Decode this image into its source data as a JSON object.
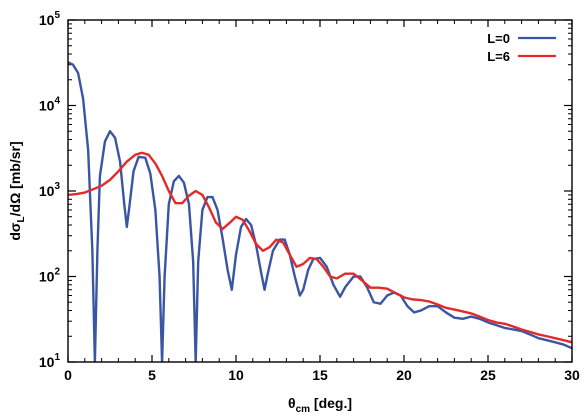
{
  "chart_data": {
    "type": "line",
    "xlabel": {
      "main": "θ",
      "sub": "cm",
      "rest": " [deg.]"
    },
    "ylabel": {
      "pre": "dσ",
      "sub": "L",
      "rest": "/dΩ [mb/sr]"
    },
    "xlim": [
      0,
      30
    ],
    "ylim": [
      10,
      100000
    ],
    "yscale": "log",
    "x_ticks": [
      0,
      5,
      10,
      15,
      20,
      25,
      30
    ],
    "y_ticks": [
      {
        "value": 10,
        "base": "10",
        "exp": "1"
      },
      {
        "value": 100,
        "base": "10",
        "exp": "2"
      },
      {
        "value": 1000,
        "base": "10",
        "exp": "3"
      },
      {
        "value": 10000,
        "base": "10",
        "exp": "4"
      },
      {
        "value": 100000,
        "base": "10",
        "exp": "5"
      }
    ],
    "legend_position": "top-right",
    "series": [
      {
        "name": "L=0",
        "color": "#3a55a4",
        "points": [
          [
            0,
            32000
          ],
          [
            0.3,
            30000
          ],
          [
            0.6,
            24000
          ],
          [
            0.9,
            12000
          ],
          [
            1.2,
            3000
          ],
          [
            1.45,
            200
          ],
          [
            1.6,
            8
          ],
          [
            1.75,
            200
          ],
          [
            1.9,
            1500
          ],
          [
            2.2,
            3800
          ],
          [
            2.5,
            5000
          ],
          [
            2.8,
            4200
          ],
          [
            3.1,
            2200
          ],
          [
            3.35,
            700
          ],
          [
            3.5,
            380
          ],
          [
            3.65,
            650
          ],
          [
            3.9,
            1700
          ],
          [
            4.2,
            2500
          ],
          [
            4.6,
            2450
          ],
          [
            4.9,
            1600
          ],
          [
            5.2,
            600
          ],
          [
            5.45,
            100
          ],
          [
            5.6,
            8
          ],
          [
            5.75,
            100
          ],
          [
            6.0,
            700
          ],
          [
            6.3,
            1300
          ],
          [
            6.6,
            1500
          ],
          [
            6.9,
            1250
          ],
          [
            7.2,
            700
          ],
          [
            7.45,
            150
          ],
          [
            7.6,
            8
          ],
          [
            7.75,
            150
          ],
          [
            8.0,
            600
          ],
          [
            8.3,
            850
          ],
          [
            8.6,
            850
          ],
          [
            8.9,
            600
          ],
          [
            9.2,
            280
          ],
          [
            9.5,
            120
          ],
          [
            9.75,
            70
          ],
          [
            10.0,
            180
          ],
          [
            10.3,
            380
          ],
          [
            10.6,
            470
          ],
          [
            10.9,
            400
          ],
          [
            11.2,
            230
          ],
          [
            11.5,
            110
          ],
          [
            11.7,
            70
          ],
          [
            11.9,
            110
          ],
          [
            12.2,
            200
          ],
          [
            12.6,
            270
          ],
          [
            12.9,
            270
          ],
          [
            13.2,
            180
          ],
          [
            13.5,
            100
          ],
          [
            13.8,
            60
          ],
          [
            14.0,
            70
          ],
          [
            14.3,
            120
          ],
          [
            14.6,
            160
          ],
          [
            15.0,
            165
          ],
          [
            15.4,
            130
          ],
          [
            15.8,
            80
          ],
          [
            16.2,
            58
          ],
          [
            16.5,
            75
          ],
          [
            17.0,
            100
          ],
          [
            17.4,
            100
          ],
          [
            17.8,
            75
          ],
          [
            18.2,
            50
          ],
          [
            18.6,
            48
          ],
          [
            19.0,
            60
          ],
          [
            19.4,
            65
          ],
          [
            19.8,
            60
          ],
          [
            20.2,
            45
          ],
          [
            20.6,
            38
          ],
          [
            21.0,
            40
          ],
          [
            21.5,
            45
          ],
          [
            22.0,
            45
          ],
          [
            22.5,
            38
          ],
          [
            23.0,
            33
          ],
          [
            23.5,
            32
          ],
          [
            24.0,
            34
          ],
          [
            24.5,
            32
          ],
          [
            25.0,
            29
          ],
          [
            25.5,
            27
          ],
          [
            26.0,
            25
          ],
          [
            26.5,
            24
          ],
          [
            27.0,
            23
          ],
          [
            27.5,
            21
          ],
          [
            28.0,
            19
          ],
          [
            28.5,
            18
          ],
          [
            29.0,
            17
          ],
          [
            29.5,
            16
          ],
          [
            30.0,
            14.5
          ]
        ]
      },
      {
        "name": "L=6",
        "color": "#e32a2a",
        "points": [
          [
            0,
            900
          ],
          [
            0.5,
            920
          ],
          [
            1.0,
            960
          ],
          [
            1.5,
            1050
          ],
          [
            2.0,
            1150
          ],
          [
            2.5,
            1350
          ],
          [
            3.0,
            1700
          ],
          [
            3.5,
            2200
          ],
          [
            4.0,
            2650
          ],
          [
            4.4,
            2800
          ],
          [
            4.8,
            2650
          ],
          [
            5.2,
            2100
          ],
          [
            5.6,
            1500
          ],
          [
            6.0,
            1000
          ],
          [
            6.4,
            720
          ],
          [
            6.8,
            720
          ],
          [
            7.2,
            880
          ],
          [
            7.6,
            1000
          ],
          [
            8.0,
            900
          ],
          [
            8.4,
            640
          ],
          [
            8.8,
            430
          ],
          [
            9.2,
            360
          ],
          [
            9.6,
            420
          ],
          [
            10.0,
            500
          ],
          [
            10.4,
            460
          ],
          [
            10.8,
            340
          ],
          [
            11.2,
            240
          ],
          [
            11.6,
            200
          ],
          [
            12.0,
            220
          ],
          [
            12.4,
            270
          ],
          [
            12.8,
            250
          ],
          [
            13.2,
            180
          ],
          [
            13.6,
            130
          ],
          [
            14.0,
            140
          ],
          [
            14.4,
            165
          ],
          [
            14.8,
            160
          ],
          [
            15.2,
            130
          ],
          [
            15.6,
            100
          ],
          [
            16.0,
            95
          ],
          [
            16.5,
            108
          ],
          [
            17.0,
            108
          ],
          [
            17.5,
            90
          ],
          [
            18.0,
            74
          ],
          [
            18.5,
            74
          ],
          [
            19.0,
            72
          ],
          [
            19.5,
            64
          ],
          [
            20.0,
            57
          ],
          [
            20.5,
            54
          ],
          [
            21.0,
            53
          ],
          [
            21.5,
            51
          ],
          [
            22.0,
            47
          ],
          [
            22.5,
            43
          ],
          [
            23.0,
            41
          ],
          [
            23.5,
            39
          ],
          [
            24.0,
            37
          ],
          [
            24.5,
            34
          ],
          [
            25.0,
            31
          ],
          [
            25.5,
            29
          ],
          [
            26.0,
            28
          ],
          [
            26.5,
            26
          ],
          [
            27.0,
            24
          ],
          [
            27.5,
            22.5
          ],
          [
            28.0,
            21
          ],
          [
            28.5,
            20
          ],
          [
            29.0,
            19
          ],
          [
            29.5,
            18
          ],
          [
            30.0,
            17
          ]
        ]
      }
    ]
  }
}
